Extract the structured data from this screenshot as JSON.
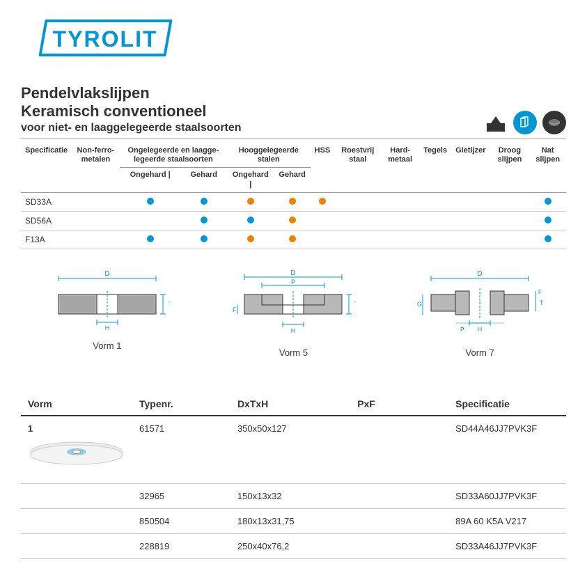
{
  "logo": {
    "text": "TYROLIT"
  },
  "header": {
    "title1": "Pendelvlakslijpen",
    "title2": "Keramisch conventioneel",
    "subtitle": "voor niet- en laaggelegeerde staalsoorten"
  },
  "appTable": {
    "headers": {
      "specificatie": "Specificatie",
      "nonferro": "Non-ferro-metalen",
      "ongelegeerde": "Ongelegeerde en laagge-legeerde staalsoorten",
      "hooggelegeerde": "Hooggelegeerde stalen",
      "hss": "HSS",
      "roestvrij": "Roestvrij staal",
      "hardmetaal": "Hard-metaal",
      "tegels": "Tegels",
      "gietijzer": "Gietijzer",
      "droog": "Droog slijpen",
      "nat": "Nat slijpen",
      "ongehard": "Ongehard",
      "gehard": "Gehard"
    },
    "rows": [
      {
        "spec": "SD33A",
        "dots": {
          "ong_ongehard": "blue",
          "ong_gehard": "blue",
          "hoog_ongehard": "orange",
          "hoog_gehard": "orange",
          "hss": "orange",
          "nat": "blue"
        }
      },
      {
        "spec": "SD56A",
        "dots": {
          "ong_gehard": "blue",
          "hoog_ongehard": "blue",
          "hoog_gehard": "orange",
          "nat": "blue"
        }
      },
      {
        "spec": "F13A",
        "dots": {
          "ong_ongehard": "blue",
          "ong_gehard": "blue",
          "hoog_ongehard": "orange",
          "hoog_gehard": "orange",
          "nat": "blue"
        }
      }
    ]
  },
  "dotColors": {
    "blue": "#0095d5",
    "orange": "#f08000"
  },
  "diagrams": {
    "items": [
      {
        "label": "Vorm 1"
      },
      {
        "label": "Vorm 5"
      },
      {
        "label": "Vorm 7"
      }
    ]
  },
  "prodTable": {
    "headers": {
      "vorm": "Vorm",
      "typenr": "Typenr.",
      "dxtxh": "DxTxH",
      "pxf": "PxF",
      "specificatie": "Specificatie"
    },
    "rows": [
      {
        "vorm": "1",
        "typenr": "61571",
        "dxtxh": "350x50x127",
        "pxf": "",
        "spec": "SD44A46JJ7PVK3F"
      },
      {
        "vorm": "",
        "typenr": "32965",
        "dxtxh": "150x13x32",
        "pxf": "",
        "spec": "SD33A60JJ7PVK3F"
      },
      {
        "vorm": "",
        "typenr": "850504",
        "dxtxh": "180x13x31,75",
        "pxf": "",
        "spec": "89A 60 K5A V217"
      },
      {
        "vorm": "",
        "typenr": "228819",
        "dxtxh": "250x40x76,2",
        "pxf": "",
        "spec": "SD33A46JJ7PVK3F"
      }
    ]
  }
}
